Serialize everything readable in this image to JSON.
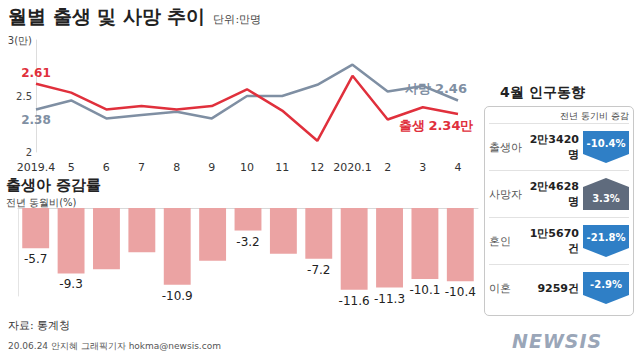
{
  "header": {
    "title": "월별 출생 및 사망 추이",
    "unit": "단위:만명"
  },
  "chart_data": [
    {
      "type": "line",
      "categories": [
        "2019.4",
        "5",
        "6",
        "7",
        "8",
        "9",
        "10",
        "11",
        "12",
        "2020.1",
        "2",
        "3",
        "4"
      ],
      "series": [
        {
          "name": "사망",
          "color": "#7f8fa3",
          "values": [
            2.38,
            2.46,
            2.3,
            2.33,
            2.36,
            2.3,
            2.5,
            2.5,
            2.6,
            2.78,
            2.54,
            2.59,
            2.46
          ],
          "value_labels": [
            "2.38",
            null,
            null,
            null,
            null,
            null,
            null,
            null,
            null,
            null,
            null,
            null,
            "2.46"
          ]
        },
        {
          "name": "출생",
          "color": "#e0303c",
          "values": [
            2.61,
            2.53,
            2.38,
            2.41,
            2.38,
            2.41,
            2.56,
            2.37,
            2.1,
            2.68,
            2.29,
            2.4,
            2.34
          ],
          "value_labels": [
            "2.61",
            null,
            null,
            null,
            null,
            null,
            null,
            null,
            null,
            null,
            null,
            null,
            "2.34만"
          ]
        }
      ],
      "ylim": [
        2,
        3
      ],
      "yticks": [
        2,
        2.5,
        {
          "value": 3,
          "label": "3(만)"
        }
      ],
      "grid": false,
      "data_labels": true
    },
    {
      "type": "bar",
      "title": "출생아 증감률",
      "subtitle": "전년 동월비(%)",
      "categories": [
        "2019.4",
        "5",
        "6",
        "7",
        "8",
        "9",
        "10",
        "11",
        "12",
        "2020.1",
        "2",
        "3",
        "4"
      ],
      "values": [
        -5.7,
        -9.3,
        -8.7,
        -6.3,
        -10.9,
        -7.5,
        -3.2,
        -6.5,
        -7.2,
        -11.6,
        -11.3,
        -10.1,
        -10.4
      ],
      "value_labels": [
        "-5.7",
        "-9.3",
        null,
        null,
        "-10.9",
        null,
        "-3.2",
        null,
        "-7.2",
        "-11.6",
        "-11.3",
        "-10.1",
        "-10.4"
      ],
      "color": "#eba3a3",
      "ylim": [
        -12.5,
        0
      ],
      "yticks": [],
      "tick_labels": false,
      "grid": false,
      "data_labels": true
    }
  ],
  "panel": {
    "title": "4월 인구동향",
    "header": "전년 동기비 증감",
    "rows": [
      {
        "label": "출생아",
        "count": "2만3420명",
        "change": {
          "value": -10.4,
          "label": "-10.4%"
        }
      },
      {
        "label": "사망자",
        "count": "2만4628명",
        "change": {
          "value": 3.3,
          "label": "3.3%"
        }
      },
      {
        "label": "혼인",
        "count": "1만5670건",
        "change": {
          "value": -21.8,
          "label": "-21.8%"
        }
      },
      {
        "label": "이혼",
        "count": "9259건",
        "change": {
          "value": -2.9,
          "label": "-2.9%"
        }
      }
    ]
  },
  "source": "자료: 통계청",
  "credit": "20.06.24 안지혜 그래픽기자 hokma@newsis.com",
  "logo": "NEWSIS"
}
